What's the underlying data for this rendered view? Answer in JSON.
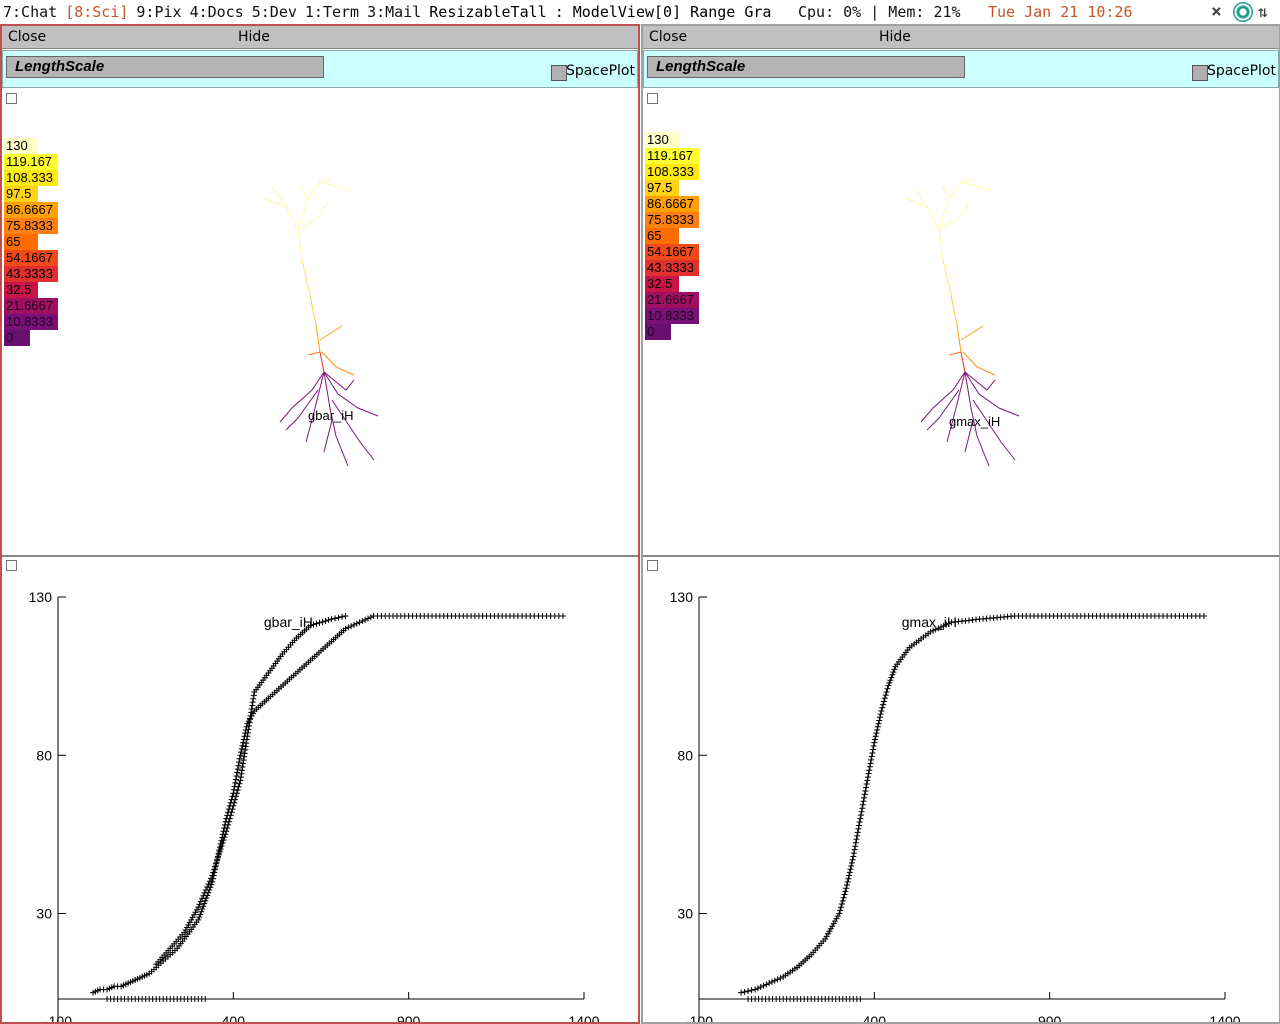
{
  "topbar": {
    "workspaces": [
      {
        "label": "7:Chat",
        "active": false
      },
      {
        "label": "[8:Sci]",
        "active": true
      },
      {
        "label": "9:Pix",
        "active": false
      },
      {
        "label": "4:Docs",
        "active": false
      },
      {
        "label": "5:Dev",
        "active": false
      },
      {
        "label": "1:Term",
        "active": false
      },
      {
        "label": "3:Mail",
        "active": false
      }
    ],
    "layout": "ResizableTall",
    "window_title": ": ModelView[0] Range Gra",
    "stats": "Cpu:  0% | Mem: 21%",
    "clock": "Tue Jan 21 10:26",
    "tray_close_icon": "×",
    "tray_arrows_icon": "⇅"
  },
  "panels": [
    {
      "close_label": "Close",
      "hide_label": "Hide",
      "menu_label": "LengthScale",
      "spaceplot_label": "SpacePlot",
      "shape_label": "gbar_iH",
      "legend": [
        "130",
        "119.167",
        "108.333",
        "97.5",
        "86.6667",
        "75.8333",
        "65",
        "54.1667",
        "43.3333",
        "32.5",
        "21.6667",
        "10.8333",
        "0"
      ],
      "graph_title": "gbar_iH"
    },
    {
      "close_label": "Close",
      "hide_label": "Hide",
      "menu_label": "LengthScale",
      "spaceplot_label": "SpacePlot",
      "shape_label": "gmax_iH",
      "legend": [
        "130",
        "119.167",
        "108.333",
        "97.5",
        "86.6667",
        "75.8333",
        "65",
        "54.1667",
        "43.3333",
        "32.5",
        "21.6667",
        "10.8333",
        "0"
      ],
      "graph_title": "gmax_iH"
    }
  ],
  "legend_colors": [
    "#ffffc8",
    "#ffff30",
    "#ffea10",
    "#ffd21a",
    "#ffa000",
    "#ff8010",
    "#ff6c00",
    "#f04a1a",
    "#e03030",
    "#c81446",
    "#a01060",
    "#781078",
    "#681070"
  ],
  "chart_data": [
    {
      "type": "scatter",
      "title": "gbar_iH",
      "xlabel": "",
      "ylabel": "",
      "xlim": [
        -100,
        1400
      ],
      "ylim": [
        3,
        130
      ],
      "xticks": [
        -100,
        400,
        900,
        1400
      ],
      "yticks": [
        30,
        80,
        130
      ],
      "marker": "+",
      "series": [
        {
          "points": [
            [
              0,
              5
            ],
            [
              20,
              6
            ],
            [
              40,
              6
            ],
            [
              60,
              7
            ],
            [
              80,
              7
            ],
            [
              100,
              8
            ],
            [
              120,
              9
            ],
            [
              140,
              10
            ],
            [
              160,
              11
            ],
            [
              180,
              13
            ],
            [
              200,
              15
            ],
            [
              220,
              17
            ],
            [
              240,
              19
            ],
            [
              260,
              22
            ],
            [
              280,
              25
            ],
            [
              300,
              28
            ],
            [
              320,
              34
            ],
            [
              340,
              40
            ],
            [
              360,
              50
            ],
            [
              380,
              60
            ],
            [
              400,
              68
            ],
            [
              420,
              80
            ],
            [
              440,
              90
            ],
            [
              460,
              94
            ],
            [
              500,
              98
            ],
            [
              560,
              104
            ],
            [
              620,
              110
            ],
            [
              680,
              116
            ],
            [
              720,
              120
            ],
            [
              760,
              122
            ],
            [
              800,
              124
            ],
            [
              900,
              124
            ],
            [
              1000,
              124
            ],
            [
              1100,
              124
            ],
            [
              1200,
              124
            ],
            [
              1340,
              124
            ]
          ]
        },
        {
          "points": [
            [
              180,
              14
            ],
            [
              220,
              19
            ],
            [
              260,
              24
            ],
            [
              300,
              32
            ],
            [
              340,
              42
            ],
            [
              380,
              56
            ],
            [
              420,
              72
            ],
            [
              460,
              100
            ],
            [
              500,
              106
            ],
            [
              540,
              112
            ],
            [
              580,
              117
            ],
            [
              620,
              121
            ],
            [
              680,
              123
            ],
            [
              720,
              124
            ]
          ]
        },
        {
          "points": [
            [
              40,
              3
            ],
            [
              80,
              3
            ],
            [
              120,
              3
            ],
            [
              160,
              3
            ],
            [
              200,
              3
            ],
            [
              240,
              3
            ],
            [
              280,
              3
            ],
            [
              320,
              3
            ]
          ]
        }
      ]
    },
    {
      "type": "scatter",
      "title": "gmax_iH",
      "xlabel": "",
      "ylabel": "",
      "xlim": [
        -100,
        1400
      ],
      "ylim": [
        3,
        130
      ],
      "xticks": [
        -100,
        400,
        900,
        1400
      ],
      "yticks": [
        30,
        80,
        130
      ],
      "marker": "+",
      "series": [
        {
          "points": [
            [
              20,
              5
            ],
            [
              60,
              6
            ],
            [
              100,
              8
            ],
            [
              140,
              10
            ],
            [
              180,
              13
            ],
            [
              220,
              17
            ],
            [
              260,
              22
            ],
            [
              280,
              26
            ],
            [
              300,
              30
            ],
            [
              320,
              38
            ],
            [
              340,
              48
            ],
            [
              360,
              60
            ],
            [
              380,
              72
            ],
            [
              400,
              84
            ],
            [
              420,
              94
            ],
            [
              440,
              102
            ],
            [
              460,
              108
            ],
            [
              500,
              114
            ],
            [
              560,
              119
            ],
            [
              620,
              122
            ],
            [
              700,
              123
            ],
            [
              800,
              124
            ],
            [
              900,
              124
            ],
            [
              1000,
              124
            ],
            [
              1100,
              124
            ],
            [
              1200,
              124
            ],
            [
              1340,
              124
            ]
          ]
        },
        {
          "points": [
            [
              40,
              3
            ],
            [
              80,
              3
            ],
            [
              120,
              3
            ],
            [
              160,
              3
            ],
            [
              200,
              3
            ],
            [
              240,
              3
            ],
            [
              280,
              3
            ],
            [
              320,
              3
            ],
            [
              360,
              3
            ]
          ]
        }
      ]
    }
  ]
}
